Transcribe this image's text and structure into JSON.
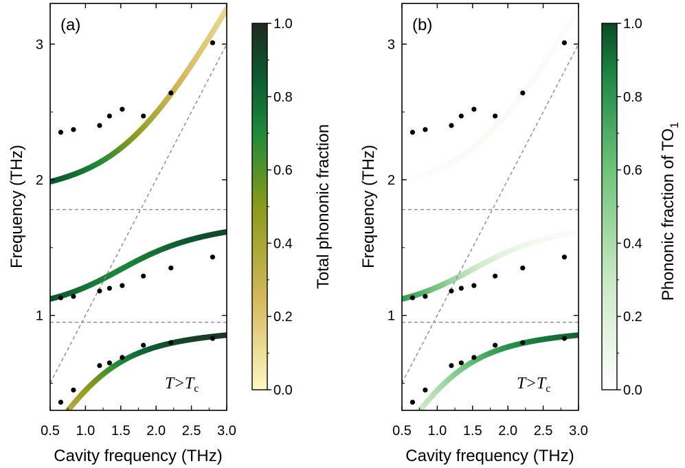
{
  "chart_data": [
    {
      "type": "scatter",
      "panel_label": "(a)",
      "xlabel": "Cavity frequency (THz)",
      "ylabel": "Frequency (THz)",
      "xlim": [
        0.5,
        3.0
      ],
      "ylim": [
        0.3,
        3.3
      ],
      "xticks": [
        "0.5",
        "1.0",
        "1.5",
        "2.0",
        "2.5",
        "3.0"
      ],
      "yticks": [
        "1",
        "2",
        "3"
      ],
      "colorbar_label": "Total phononic fraction",
      "colorbar_ticks": [
        "0.0",
        "0.2",
        "0.4",
        "0.6",
        "0.8",
        "1.0"
      ],
      "colormap": "yellow-green-black",
      "annotation_T": "T",
      "annotation_gt": ">",
      "annotation_Tc": "T",
      "annotation_c": "c",
      "reference_lines": {
        "horizontal": [
          0.95,
          1.78
        ],
        "diagonal_y_equals_x": true
      },
      "experimental_points": {
        "x": [
          0.65,
          0.83,
          1.2,
          1.34,
          1.52,
          1.82,
          2.21,
          2.8
        ],
        "upper": [
          2.35,
          2.37,
          2.4,
          2.47,
          2.52,
          2.47,
          2.64,
          3.01
        ],
        "middle": [
          1.13,
          1.14,
          1.18,
          1.2,
          1.22,
          1.29,
          1.35,
          1.43
        ],
        "lower": [
          0.36,
          0.45,
          0.63,
          0.65,
          0.69,
          0.78,
          0.8,
          0.83
        ]
      }
    },
    {
      "type": "scatter",
      "panel_label": "(b)",
      "xlabel": "Cavity frequency (THz)",
      "ylabel": "Frequency (THz)",
      "xlim": [
        0.5,
        3.0
      ],
      "ylim": [
        0.3,
        3.3
      ],
      "xticks": [
        "0.5",
        "1.0",
        "1.5",
        "2.0",
        "2.5",
        "3.0"
      ],
      "yticks": [
        "1",
        "2",
        "3"
      ],
      "colorbar_label": "Phononic fraction of TO",
      "colorbar_label_sub": "1",
      "colorbar_ticks": [
        "0.0",
        "0.2",
        "0.4",
        "0.6",
        "0.8",
        "1.0"
      ],
      "colormap": "white-green",
      "annotation_T": "T",
      "annotation_gt": ">",
      "annotation_Tc": "T",
      "annotation_c": "c",
      "reference_lines": {
        "horizontal": [
          0.95,
          1.78
        ],
        "diagonal_y_equals_x": true
      },
      "experimental_points": {
        "x": [
          0.65,
          0.83,
          1.2,
          1.34,
          1.52,
          1.82,
          2.21,
          2.8
        ],
        "upper": [
          2.35,
          2.37,
          2.4,
          2.47,
          2.52,
          2.47,
          2.64,
          3.01
        ],
        "middle": [
          1.13,
          1.14,
          1.18,
          1.2,
          1.22,
          1.29,
          1.35,
          1.43
        ],
        "lower": [
          0.36,
          0.45,
          0.63,
          0.65,
          0.69,
          0.78,
          0.8,
          0.83
        ]
      }
    }
  ]
}
